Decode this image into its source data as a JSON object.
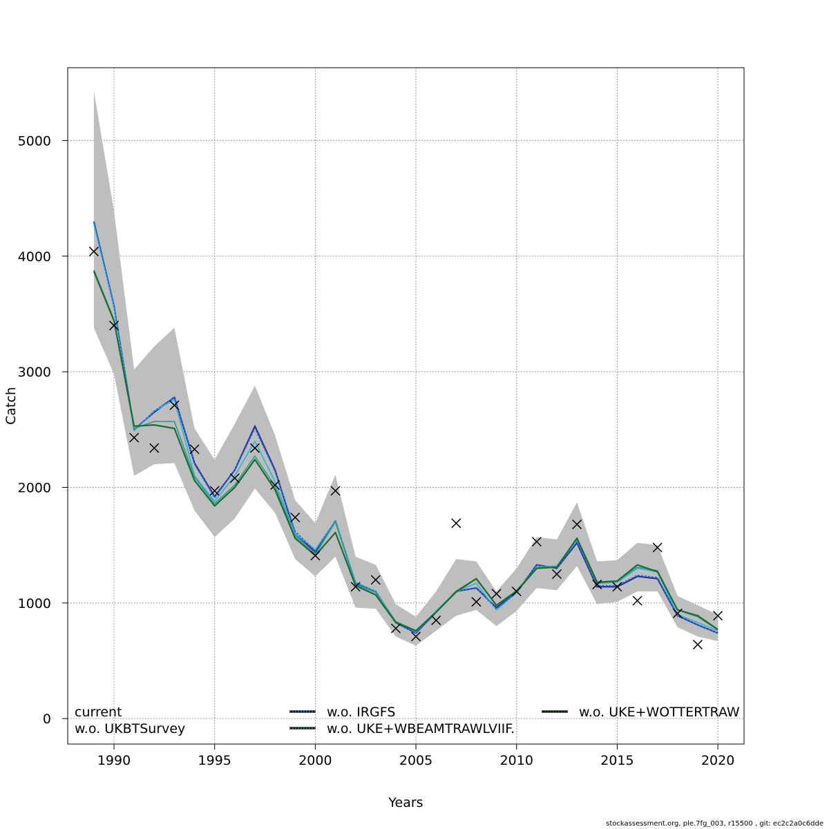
{
  "chart_data": {
    "type": "line",
    "title": "",
    "xlabel": "Years",
    "ylabel": "Catch",
    "xlim": [
      1987.7,
      2021.3
    ],
    "ylim": [
      -220,
      5630
    ],
    "grid": true,
    "x_ticks": [
      1990,
      1995,
      2000,
      2005,
      2010,
      2015,
      2020
    ],
    "y_ticks": [
      0,
      1000,
      2000,
      3000,
      4000,
      5000
    ],
    "x_tick_labels": [
      "1990",
      "1995",
      "2000",
      "2005",
      "2010",
      "2015",
      "2020"
    ],
    "y_tick_labels": [
      "0",
      "1000",
      "2000",
      "3000",
      "4000",
      "5000"
    ],
    "years": [
      1989,
      1990,
      1991,
      1992,
      1993,
      1994,
      1995,
      1996,
      1997,
      1998,
      1999,
      2000,
      2001,
      2002,
      2003,
      2004,
      2005,
      2006,
      2007,
      2008,
      2009,
      2010,
      2011,
      2012,
      2013,
      2014,
      2015,
      2016,
      2017,
      2018,
      2019,
      2020
    ],
    "band": {
      "name": "confidence interval",
      "color": "#bebebe",
      "lower": [
        3380,
        2980,
        2100,
        2200,
        2210,
        1800,
        1570,
        1730,
        1990,
        1780,
        1380,
        1230,
        1400,
        960,
        950,
        710,
        630,
        760,
        890,
        940,
        800,
        930,
        1130,
        1110,
        1320,
        990,
        1010,
        1100,
        1100,
        790,
        710,
        670
      ],
      "upper": [
        5430,
        4390,
        3020,
        3220,
        3380,
        2510,
        2240,
        2550,
        2880,
        2450,
        1890,
        1690,
        2110,
        1400,
        1330,
        990,
        880,
        1100,
        1380,
        1360,
        1100,
        1300,
        1570,
        1550,
        1870,
        1360,
        1370,
        1520,
        1500,
        1060,
        980,
        900
      ]
    },
    "series": [
      {
        "name": "current",
        "color": "#2b2f8c",
        "dashed": false,
        "values": [
          4300,
          3570,
          2500,
          2650,
          2780,
          2210,
          1920,
          2150,
          2530,
          2150,
          1600,
          1440,
          1710,
          1170,
          1100,
          830,
          740,
          920,
          1100,
          1130,
          960,
          1090,
          1330,
          1300,
          1520,
          1140,
          1140,
          1230,
          1210,
          890,
          810,
          740
        ]
      },
      {
        "name": "w.o. UKBTSurvey",
        "color": "#36b4d2",
        "dashed": false,
        "values": [
          4280,
          3560,
          2490,
          2660,
          2760,
          2100,
          1880,
          2100,
          2400,
          2050,
          1600,
          1460,
          1710,
          1180,
          1100,
          840,
          750,
          930,
          1100,
          1170,
          940,
          1090,
          1310,
          1320,
          1550,
          1170,
          1180,
          1300,
          1270,
          900,
          830,
          760
        ]
      },
      {
        "name": "w.o. IRGFS",
        "color": "#1f6ee0",
        "dashed": true,
        "values": [
          4300,
          3570,
          2500,
          2660,
          2780,
          2200,
          1910,
          2150,
          2510,
          2140,
          1620,
          1450,
          1710,
          1170,
          1100,
          830,
          740,
          920,
          1100,
          1130,
          950,
          1090,
          1330,
          1300,
          1530,
          1150,
          1150,
          1240,
          1220,
          890,
          810,
          740
        ]
      },
      {
        "name": "w.o. UKE+WBEAMTRAWLVIIF.",
        "color": "#3a9e8a",
        "dashed": false,
        "values": [
          3880,
          3450,
          2510,
          2570,
          2570,
          2090,
          1860,
          2020,
          2270,
          2010,
          1580,
          1420,
          1700,
          1160,
          1090,
          840,
          760,
          920,
          1090,
          1210,
          980,
          1110,
          1300,
          1310,
          1560,
          1170,
          1190,
          1310,
          1280,
          940,
          880,
          770
        ]
      },
      {
        "name": "w.o. UKE+WOTTERTRAW",
        "color": "#1a6b34",
        "dashed": false,
        "values": [
          3870,
          3440,
          2530,
          2540,
          2510,
          2060,
          1840,
          2000,
          2240,
          1980,
          1560,
          1410,
          1610,
          1150,
          1070,
          830,
          760,
          920,
          1100,
          1210,
          980,
          1100,
          1300,
          1310,
          1560,
          1180,
          1190,
          1330,
          1270,
          940,
          890,
          770
        ]
      }
    ],
    "observed": {
      "name": "observed catch",
      "marker": "x",
      "years": [
        1989,
        1990,
        1991,
        1992,
        1993,
        1994,
        1995,
        1996,
        1997,
        1998,
        1999,
        2000,
        2001,
        2002,
        2003,
        2004,
        2005,
        2006,
        2007,
        2008,
        2009,
        2010,
        2011,
        2012,
        2013,
        2014,
        2015,
        2016,
        2017,
        2018,
        2019,
        2020
      ],
      "values": [
        4040,
        3400,
        2430,
        2340,
        2710,
        2330,
        1970,
        2080,
        2340,
        2020,
        1740,
        1410,
        1970,
        1140,
        1200,
        780,
        710,
        850,
        1690,
        1010,
        1080,
        1100,
        1530,
        1250,
        1680,
        1160,
        1140,
        1020,
        1480,
        910,
        640,
        890
      ]
    },
    "legend": {
      "placement": "bottom-left-inside",
      "entries": [
        {
          "label": "current",
          "series": "current",
          "show_line": false
        },
        {
          "label": "w.o. UKBTSurvey",
          "series": "w.o. UKBTSurvey",
          "show_line": false
        },
        {
          "label": "w.o. IRGFS",
          "series": "w.o. IRGFS",
          "show_line": true
        },
        {
          "label": "w.o. UKE+WBEAMTRAWLVIIF.",
          "series": "w.o. UKE+WBEAMTRAWLVIIF.",
          "show_line": true
        },
        {
          "label": "w.o. UKE+WOTTERTRAW",
          "series": "w.o. UKE+WOTTERTRAW",
          "show_line": true
        }
      ]
    }
  },
  "footer": {
    "text": "stockassessment.org, ple.7fg_003, r15500 , git: ec2c2a0c6dde"
  }
}
